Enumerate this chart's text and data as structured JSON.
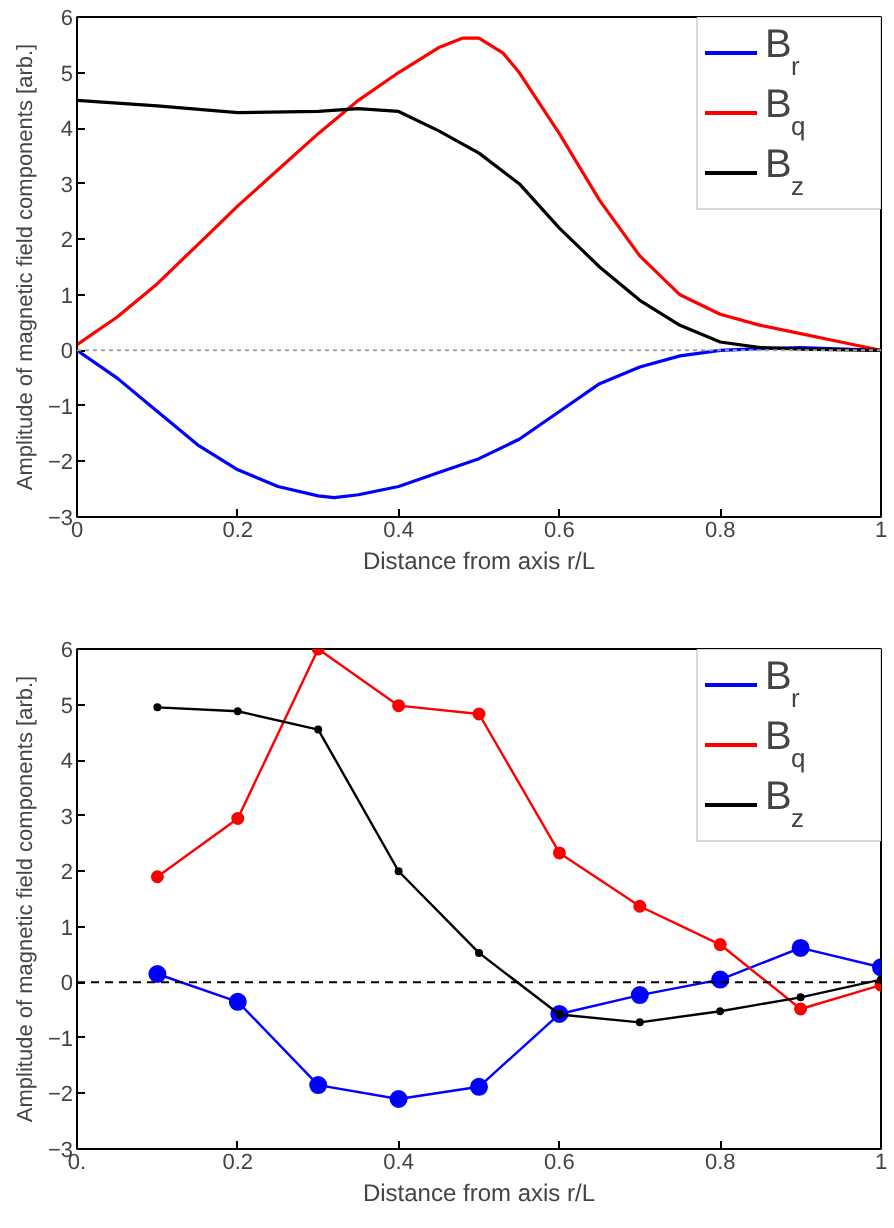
{
  "chart_data": [
    {
      "type": "line",
      "xlabel": "Distance from axis r/L",
      "ylabel": "Amplitude of magnetic field components [arb.]",
      "xlim": [
        0,
        1
      ],
      "ylim": [
        -3,
        6
      ],
      "xticks": [
        0,
        0.2,
        0.4,
        0.6,
        0.8,
        1
      ],
      "yticks": [
        -3,
        -2,
        -1,
        0,
        1,
        2,
        3,
        4,
        5,
        6
      ],
      "grid": false,
      "legend": "top right",
      "marker": "none",
      "line_style": "solid",
      "ref_lines": [
        {
          "axis": "y",
          "value": 0,
          "color": "#a0a0a0",
          "line_style": "dotted"
        }
      ],
      "series": [
        {
          "name": "B$_{r}$",
          "color": "#0000ff",
          "x": [
            0,
            0.05,
            0.1,
            0.15,
            0.2,
            0.25,
            0.3,
            0.32,
            0.35,
            0.4,
            0.45,
            0.5,
            0.55,
            0.6,
            0.65,
            0.7,
            0.75,
            0.8,
            0.85,
            0.9,
            1
          ],
          "values": [
            0,
            -0.5,
            -1.1,
            -1.7,
            -2.15,
            -2.45,
            -2.62,
            -2.65,
            -2.6,
            -2.45,
            -2.2,
            -1.95,
            -1.6,
            -1.1,
            -0.6,
            -0.3,
            -0.1,
            0,
            0.03,
            0.05,
            0
          ]
        },
        {
          "name": "B$_{q}$",
          "color": "#ff0000",
          "x": [
            0,
            0.05,
            0.1,
            0.15,
            0.2,
            0.25,
            0.3,
            0.35,
            0.4,
            0.45,
            0.48,
            0.5,
            0.53,
            0.55,
            0.6,
            0.65,
            0.7,
            0.75,
            0.8,
            0.85,
            0.9,
            0.95,
            1
          ],
          "values": [
            0.1,
            0.6,
            1.2,
            1.9,
            2.6,
            3.25,
            3.9,
            4.5,
            5.0,
            5.45,
            5.62,
            5.62,
            5.35,
            5.0,
            3.9,
            2.7,
            1.7,
            1.0,
            0.65,
            0.45,
            0.3,
            0.15,
            0
          ]
        },
        {
          "name": "B$_{z}$",
          "color": "#000000",
          "x": [
            0,
            0.1,
            0.2,
            0.3,
            0.35,
            0.4,
            0.45,
            0.5,
            0.55,
            0.6,
            0.65,
            0.7,
            0.75,
            0.8,
            0.85,
            0.9,
            1
          ],
          "values": [
            4.5,
            4.4,
            4.28,
            4.3,
            4.35,
            4.3,
            3.95,
            3.55,
            3.0,
            2.2,
            1.5,
            0.9,
            0.45,
            0.15,
            0.05,
            0.02,
            0
          ]
        }
      ]
    },
    {
      "type": "line",
      "xlabel": "Distance from axis r/L",
      "ylabel": "Amplitude of magnetic field components [arb.]",
      "xlim": [
        0,
        1
      ],
      "ylim": [
        -3,
        6
      ],
      "xticks": [
        {
          "value": 0,
          "label": "0."
        },
        0.2,
        0.4,
        0.6,
        0.8,
        1
      ],
      "yticks": [
        -3,
        -2,
        -1,
        0,
        1,
        2,
        3,
        4,
        5,
        6
      ],
      "grid": false,
      "legend": "top right",
      "marker": "circle",
      "line_style": "solid",
      "ref_lines": [
        {
          "axis": "y",
          "value": 0,
          "color": "#000000",
          "line_style": "dashed"
        }
      ],
      "x": [
        0.1,
        0.2,
        0.3,
        0.4,
        0.5,
        0.6,
        0.7,
        0.8,
        0.9,
        1.0
      ],
      "series": [
        {
          "name": "B$_{r}$",
          "color": "#0000ff",
          "values": [
            0.15,
            -0.35,
            -1.85,
            -2.1,
            -1.88,
            -0.57,
            -0.23,
            0.05,
            0.62,
            0.27
          ]
        },
        {
          "name": "B$_{q}$",
          "color": "#ff0000",
          "values": [
            1.9,
            2.95,
            6.0,
            4.98,
            4.83,
            2.33,
            1.37,
            0.68,
            -0.48,
            -0.05
          ]
        },
        {
          "name": "B$_{z}$",
          "color": "#000000",
          "values": [
            4.95,
            4.88,
            4.55,
            2.0,
            0.53,
            -0.58,
            -0.72,
            -0.52,
            -0.27,
            0.05
          ]
        }
      ]
    }
  ]
}
